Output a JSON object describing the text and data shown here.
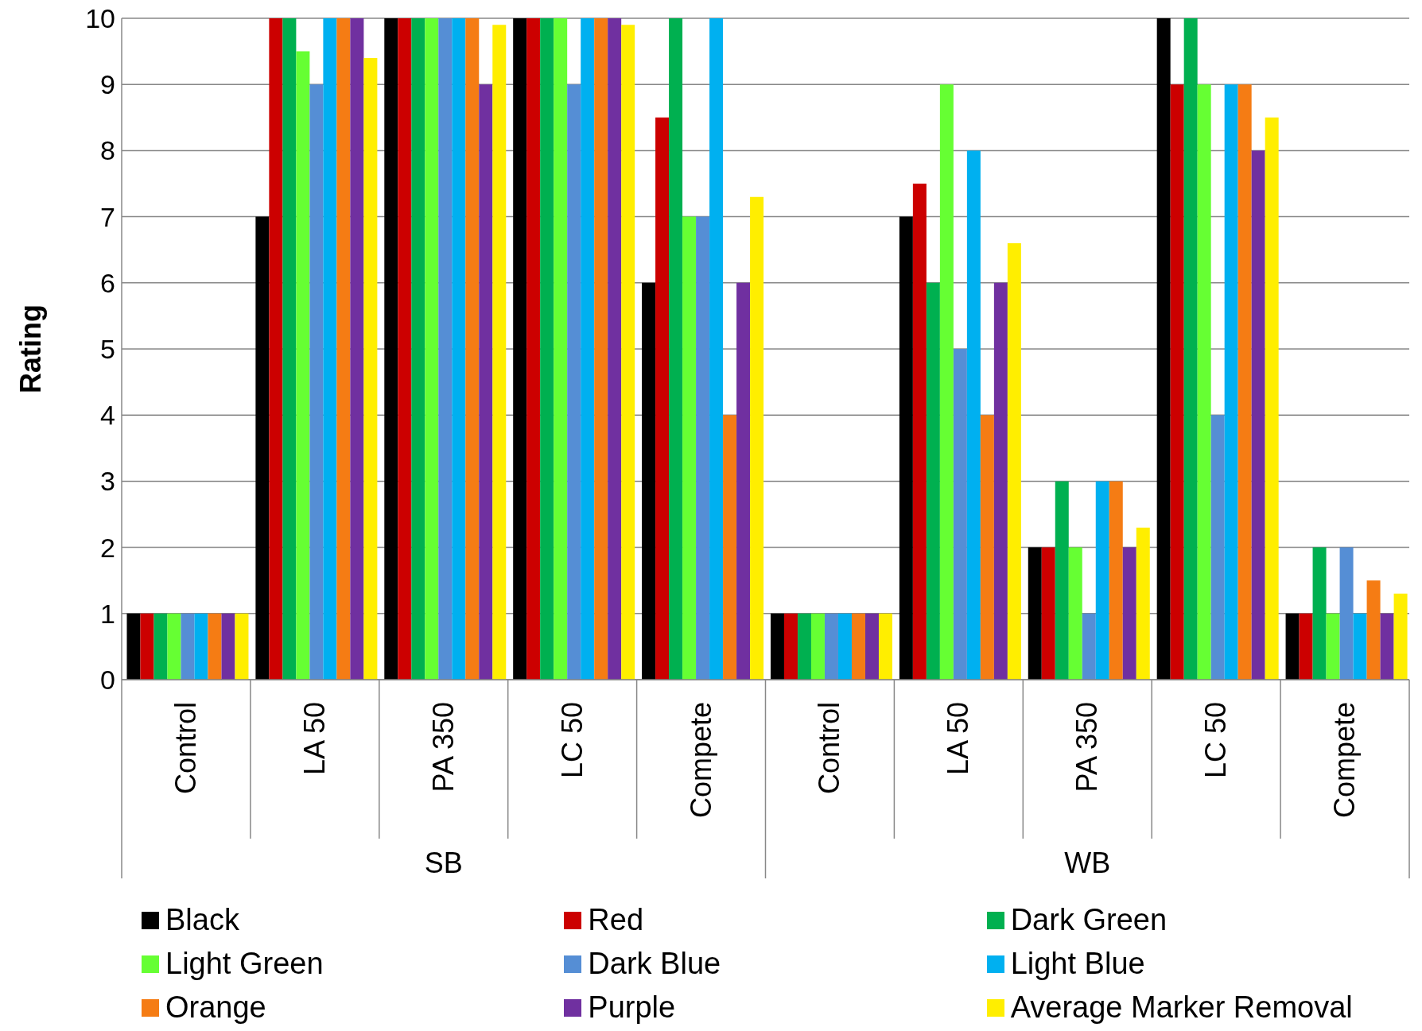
{
  "chart_data": {
    "type": "bar",
    "ylabel": "Rating",
    "categories": [
      "Control",
      "LA 50",
      "PA 350",
      "LC 50",
      "Compete",
      "Control",
      "LA 50",
      "PA 350",
      "LC 50",
      "Compete"
    ],
    "annotations": [
      "SB",
      "WB"
    ],
    "ylim": [
      0,
      10
    ],
    "yticks": [
      0,
      1,
      2,
      3,
      4,
      5,
      6,
      7,
      8,
      9,
      10
    ],
    "grid": "y",
    "legend": "bottom",
    "series": [
      {
        "name": "Black",
        "color": "#000000",
        "values": [
          1,
          7,
          10,
          10,
          6,
          1,
          7,
          2,
          10,
          1
        ]
      },
      {
        "name": "Red",
        "color": "#cc0000",
        "values": [
          1,
          10,
          10,
          10,
          8.5,
          1,
          7.5,
          2,
          9,
          1
        ]
      },
      {
        "name": "Dark Green",
        "color": "#00b050",
        "values": [
          1,
          10,
          10,
          10,
          10,
          1,
          6,
          3,
          10,
          2
        ]
      },
      {
        "name": "Light Green",
        "color": "#66ff33",
        "values": [
          1,
          9.5,
          10,
          10,
          7,
          1,
          9,
          2,
          9,
          1
        ]
      },
      {
        "name": "Dark Blue",
        "color": "#558ed5",
        "values": [
          1,
          9,
          10,
          9,
          7,
          1,
          5,
          1,
          4,
          2
        ]
      },
      {
        "name": "Light Blue",
        "color": "#00b0f0",
        "values": [
          1,
          10,
          10,
          10,
          10,
          1,
          8,
          3,
          9,
          1
        ]
      },
      {
        "name": "Orange",
        "color": "#f57c14",
        "values": [
          1,
          10,
          10,
          10,
          4,
          1,
          4,
          3,
          9,
          1.5
        ]
      },
      {
        "name": "Purple",
        "color": "#7030a0",
        "values": [
          1,
          10,
          9,
          10,
          6,
          1,
          6,
          2,
          8,
          1
        ]
      },
      {
        "name": "Average Marker Removal",
        "color": "#ffee00",
        "values": [
          1,
          9.4,
          9.9,
          9.9,
          7.3,
          1,
          6.6,
          2.3,
          8.5,
          1.3
        ]
      }
    ]
  }
}
